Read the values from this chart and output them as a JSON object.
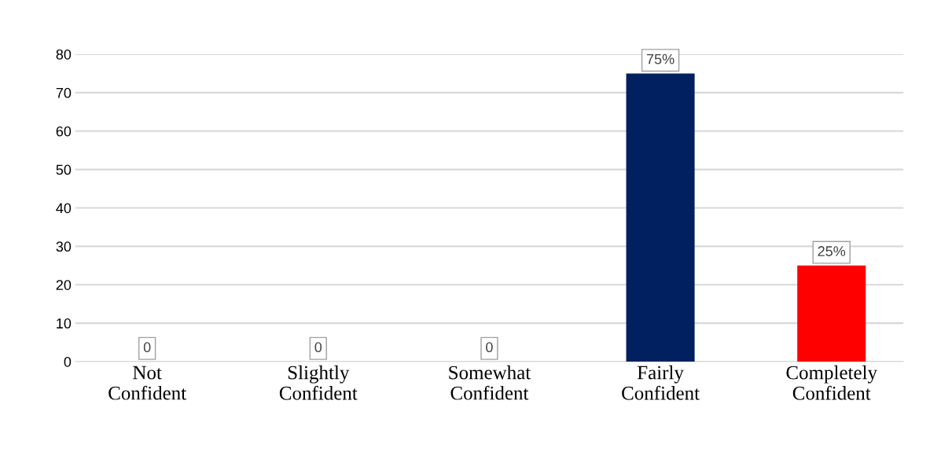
{
  "chart_data": {
    "type": "bar",
    "categories": [
      "Not\nConfident",
      "Slightly\nConfident",
      "Somewhat\nConfident",
      "Fairly\nConfident",
      "Completely\nConfident"
    ],
    "values": [
      0,
      0,
      0,
      75,
      25
    ],
    "colors": [
      "#2f5597",
      "#2f5597",
      "#2f5597",
      "#002060",
      "#ff0000"
    ],
    "value_labels": [
      "0",
      "0",
      "0",
      "75%",
      "25%"
    ],
    "ylim": [
      0,
      80
    ],
    "yticks": [
      0,
      10,
      20,
      30,
      40,
      50,
      60,
      70,
      80
    ],
    "grid": "y"
  }
}
